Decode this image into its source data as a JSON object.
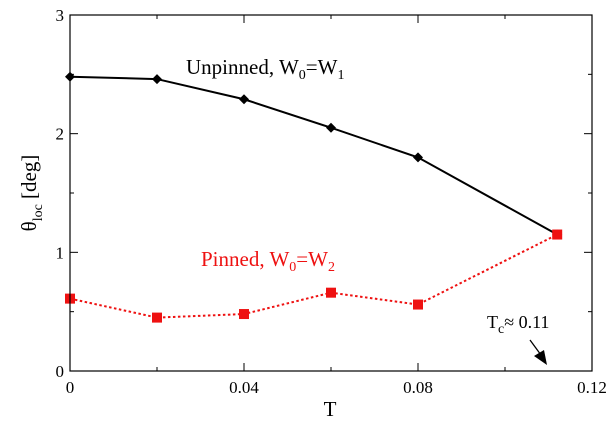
{
  "chart_data": {
    "type": "line",
    "xlabel": "T",
    "ylabel": {
      "main": "θ",
      "sub": "loc",
      "rest": " [deg]"
    },
    "xlim": [
      0,
      0.12
    ],
    "ylim": [
      0,
      3
    ],
    "xticks": [
      0,
      0.04,
      0.08,
      0.12
    ],
    "xtick_labels": [
      "0",
      "0.04",
      "0.08",
      "0.12"
    ],
    "yticks": [
      0,
      1,
      2,
      3
    ],
    "ytick_labels": [
      "0",
      "1",
      "2",
      "3"
    ],
    "grid": false,
    "series": [
      {
        "name": "Unpinned, W0=W1",
        "color": "#000000",
        "marker": "diamond",
        "line": "solid",
        "x": [
          0,
          0.02,
          0.04,
          0.06,
          0.08,
          0.112
        ],
        "y": [
          2.48,
          2.46,
          2.29,
          2.05,
          1.8,
          1.15
        ]
      },
      {
        "name": "Pinned, W0=W2",
        "color": "#ee1111",
        "marker": "square",
        "line": "dotted",
        "x": [
          0,
          0.02,
          0.04,
          0.06,
          0.08,
          0.112
        ],
        "y": [
          0.61,
          0.45,
          0.48,
          0.66,
          0.56,
          1.15
        ]
      }
    ],
    "annotations": {
      "unpinned": {
        "main": "Unpinned, W",
        "sub1": "0",
        "mid": "=W",
        "sub2": "1"
      },
      "pinned": {
        "main": "Pinned, W",
        "sub1": "0",
        "mid": "=W",
        "sub2": "2"
      },
      "tc": {
        "main": "T",
        "sub": "c",
        "rest": "≈ 0.11"
      }
    }
  }
}
